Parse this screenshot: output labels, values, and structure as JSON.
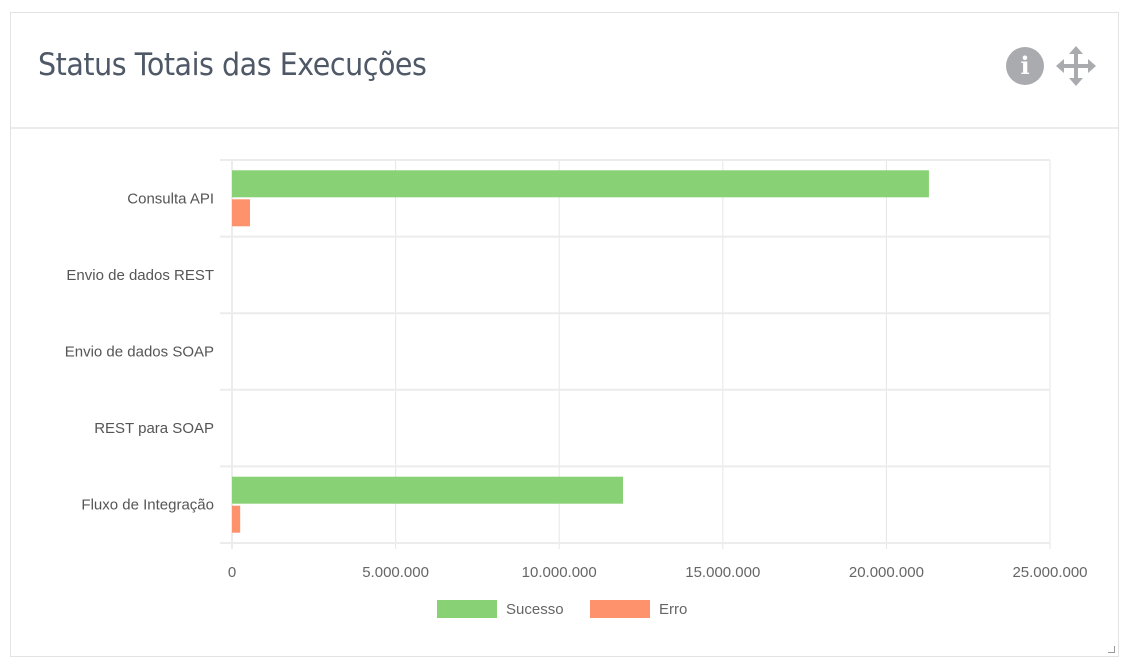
{
  "header": {
    "title": "Status Totais das Execuções",
    "info_icon": "info-icon",
    "move_icon": "move-icon"
  },
  "chart_data": {
    "type": "bar",
    "orientation": "horizontal",
    "title": "Status Totais das Execuções",
    "categories": [
      "Consulta API",
      "Envio de dados REST",
      "Envio de dados SOAP",
      "REST para SOAP",
      "Fluxo de Integração"
    ],
    "series": [
      {
        "name": "Sucesso",
        "color": "#88d174",
        "values": [
          21300000,
          0,
          0,
          0,
          11950000
        ]
      },
      {
        "name": "Erro",
        "color": "#fe926d",
        "values": [
          550000,
          0,
          0,
          0,
          250000
        ]
      }
    ],
    "xlim": [
      0,
      25000000
    ],
    "xticks": [
      0,
      5000000,
      10000000,
      15000000,
      20000000,
      25000000
    ],
    "xtick_labels": [
      "0",
      "5.000.000",
      "10.000.000",
      "15.000.000",
      "20.000.000",
      "25.000.000"
    ],
    "grid": true,
    "legend": "bottom"
  }
}
